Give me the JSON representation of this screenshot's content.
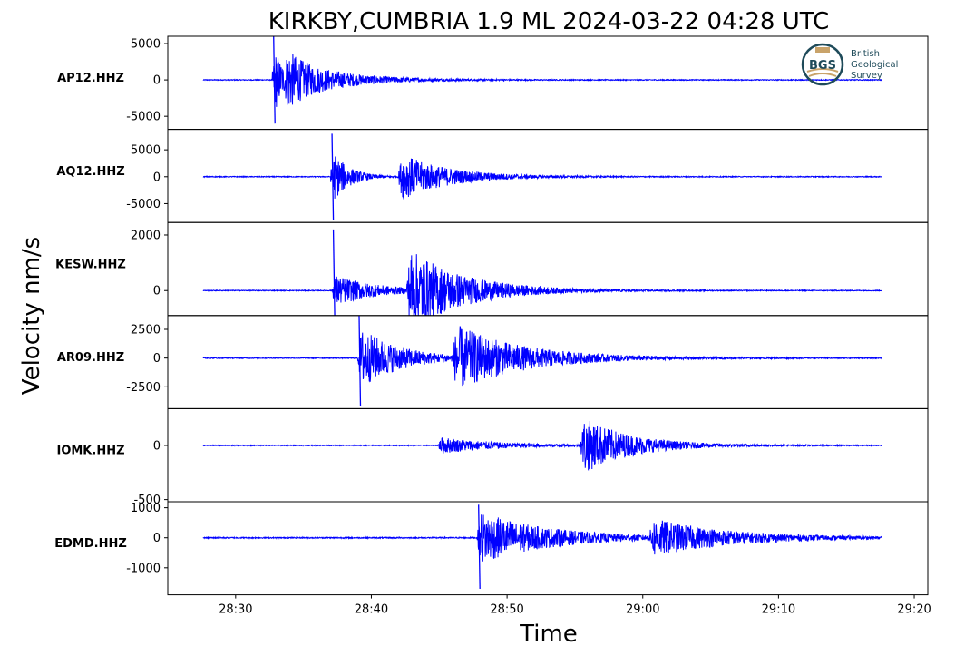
{
  "chart_data": {
    "type": "line",
    "title": "KIRKBY,CUMBRIA 1.9 ML   2024-03-22 04:28 UTC",
    "xlabel": "Time",
    "ylabel": "Velocity nm/s",
    "x_ticks": [
      "28:30",
      "28:40",
      "28:50",
      "29:00",
      "29:10",
      "29:20"
    ],
    "x_tick_seconds": [
      30,
      40,
      50,
      60,
      70,
      80
    ],
    "xlim": [
      25.0,
      81.0
    ],
    "trace_start": 27.6,
    "trace_end": 77.6,
    "color": "#0000ff",
    "logo": {
      "abbr": "BGS",
      "lines": [
        "British",
        "Geological",
        "Survey"
      ]
    },
    "panels": [
      {
        "name": "AP12.HHZ",
        "ylim": [
          -6800,
          6000
        ],
        "yticks": [
          5000,
          0,
          -5000
        ],
        "ytick_labels": [
          "5000",
          "0",
          "-5000"
        ],
        "noise": 60,
        "peak_pos": 6000,
        "peak_neg": -6000,
        "events": [
          {
            "t": 32.7,
            "amp": 6000,
            "decay": 0.7,
            "spike": true
          },
          {
            "t": 33.6,
            "amp": 3500,
            "decay": 3.5
          }
        ]
      },
      {
        "name": "AQ12.HHZ",
        "ylim": [
          -8500,
          8800
        ],
        "yticks": [
          5000,
          0,
          -5000
        ],
        "ytick_labels": [
          "5000",
          "0",
          "-5000"
        ],
        "noise": 80,
        "peak_pos": 8000,
        "peak_neg": -8000,
        "events": [
          {
            "t": 37.0,
            "amp": 5500,
            "decay": 1.2,
            "spike": true
          },
          {
            "t": 42.0,
            "amp": 4500,
            "decay": 3.5
          }
        ]
      },
      {
        "name": "KESW.HHZ",
        "ylim": [
          -900,
          2450
        ],
        "yticks": [
          2000,
          0
        ],
        "ytick_labels": [
          "2000",
          "0"
        ],
        "noise": 15,
        "peak_pos": 2200,
        "peak_neg": -900,
        "events": [
          {
            "t": 37.1,
            "amp": 600,
            "decay": 3.0,
            "spike": true
          },
          {
            "t": 42.6,
            "amp": 1500,
            "decay": 4.0
          }
        ]
      },
      {
        "name": "AR09.HHZ",
        "ylim": [
          -4400,
          3700
        ],
        "yticks": [
          2500,
          0,
          -2500
        ],
        "ytick_labels": [
          "2500",
          "0",
          "-2500"
        ],
        "noise": 40,
        "peak_pos": 3700,
        "peak_neg": -4200,
        "events": [
          {
            "t": 39.0,
            "amp": 2800,
            "decay": 3.0,
            "spike": true
          },
          {
            "t": 46.0,
            "amp": 2800,
            "decay": 5.0
          }
        ]
      },
      {
        "name": "IOMK.HHZ",
        "ylim": [
          -520,
          340
        ],
        "yticks": [
          0,
          -500
        ],
        "ytick_labels": [
          "0",
          "-500"
        ],
        "noise": 4,
        "peak_pos": 330,
        "peak_neg": -460,
        "events": [
          {
            "t": 44.9,
            "amp": 80,
            "decay": 4.0
          },
          {
            "t": 55.4,
            "amp": 270,
            "decay": 3.5
          }
        ]
      },
      {
        "name": "EDMD.HHZ",
        "ylim": [
          -1900,
          1200
        ],
        "yticks": [
          1000,
          0,
          -1000
        ],
        "ytick_labels": [
          "1000",
          "0",
          "-1000"
        ],
        "noise": 20,
        "peak_pos": 1100,
        "peak_neg": -1700,
        "events": [
          {
            "t": 47.8,
            "amp": 900,
            "decay": 5.0,
            "spike": true
          },
          {
            "t": 60.5,
            "amp": 600,
            "decay": 5.5
          }
        ]
      }
    ]
  }
}
